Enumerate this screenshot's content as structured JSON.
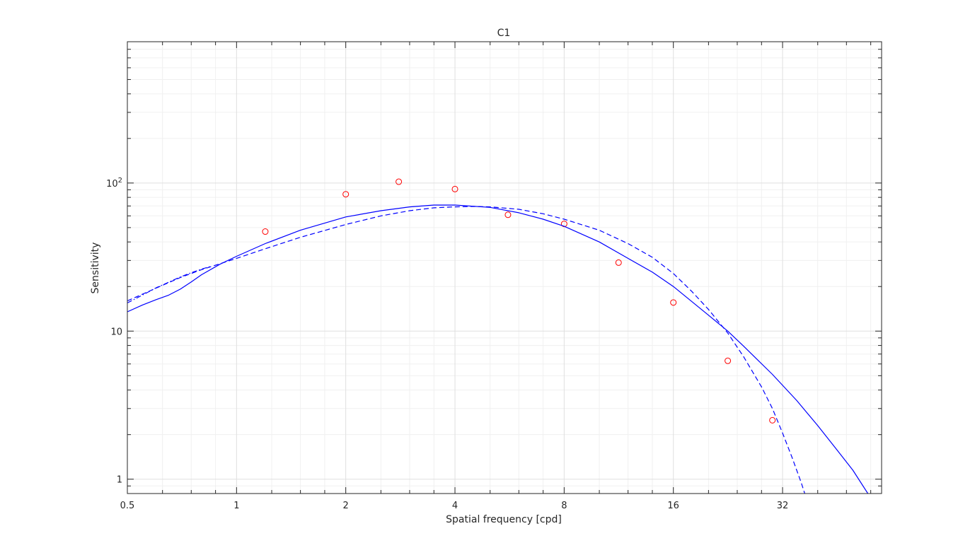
{
  "chart_data": {
    "type": "line",
    "title": "C1",
    "xlabel": "Spatial frequency [cpd]",
    "ylabel": "Sensitivity",
    "xscale": "log2",
    "yscale": "log10",
    "xlim": [
      0.5,
      60
    ],
    "ylim": [
      0.8,
      900
    ],
    "grid": true,
    "minor_grid": true,
    "box": true,
    "x_ticks": [
      0.5,
      1,
      2,
      4,
      8,
      16,
      32
    ],
    "x_tick_labels": [
      "0.5",
      "1",
      "2",
      "4",
      "8",
      "16",
      "32"
    ],
    "y_ticks": [
      1,
      10,
      100
    ],
    "y_tick_labels": [
      {
        "base": "1",
        "exp": ""
      },
      {
        "base": "10",
        "exp": ""
      },
      {
        "base": "10",
        "exp": "2"
      }
    ],
    "series": [
      {
        "style": "markers",
        "marker": "circle",
        "color": "#ff0000",
        "x": [
          1.2,
          2,
          2.8,
          4,
          5.6,
          8,
          11.3,
          16,
          22.6,
          30
        ],
        "y": [
          47,
          84,
          102,
          91,
          61,
          53,
          29,
          15.6,
          6.3,
          2.5
        ]
      },
      {
        "style": "solid",
        "color": "#0000ff",
        "x": [
          0.5,
          0.55,
          0.6,
          0.65,
          0.7,
          0.75,
          0.8,
          0.9,
          1,
          1.2,
          1.5,
          2,
          2.5,
          3,
          3.5,
          4,
          5,
          6,
          7,
          8,
          10,
          12,
          14,
          16,
          20,
          22.6,
          25,
          30,
          35,
          40,
          45,
          50,
          55
        ],
        "y": [
          13.5,
          15,
          16.3,
          17.5,
          19.2,
          21.5,
          24,
          28.3,
          32,
          39,
          48,
          59,
          65,
          69,
          71,
          71,
          68.5,
          63,
          57,
          51,
          40,
          31,
          25,
          20,
          12.8,
          10,
          7.9,
          5.1,
          3.4,
          2.3,
          1.6,
          1.15,
          0.8
        ]
      },
      {
        "style": "dashed",
        "color": "#0000ff",
        "x": [
          0.5,
          0.6,
          0.7,
          0.8,
          0.9,
          1,
          1.2,
          1.5,
          2,
          2.5,
          3,
          3.5,
          4,
          4.5,
          5,
          6,
          7,
          8,
          10,
          12,
          14,
          16,
          18,
          20,
          22.6,
          25,
          28,
          30,
          32,
          34,
          36,
          37.5
        ],
        "y": [
          16,
          19.5,
          23,
          26,
          28.5,
          31,
          36,
          43,
          52.5,
          60,
          65,
          68,
          69,
          69.5,
          69,
          66.5,
          62,
          57,
          48,
          39,
          31.5,
          24.5,
          18.5,
          14,
          9.7,
          6.7,
          4.2,
          3.0,
          2.05,
          1.4,
          0.95,
          0.7
        ]
      },
      {
        "style": "dashdot",
        "color": "#0000ff",
        "x": [
          0.5,
          0.55,
          0.6,
          0.65,
          0.7,
          0.75,
          0.8,
          0.85
        ],
        "y": [
          15.5,
          17.5,
          19.6,
          21.4,
          23.2,
          24.8,
          26.2,
          27.4
        ]
      }
    ]
  }
}
